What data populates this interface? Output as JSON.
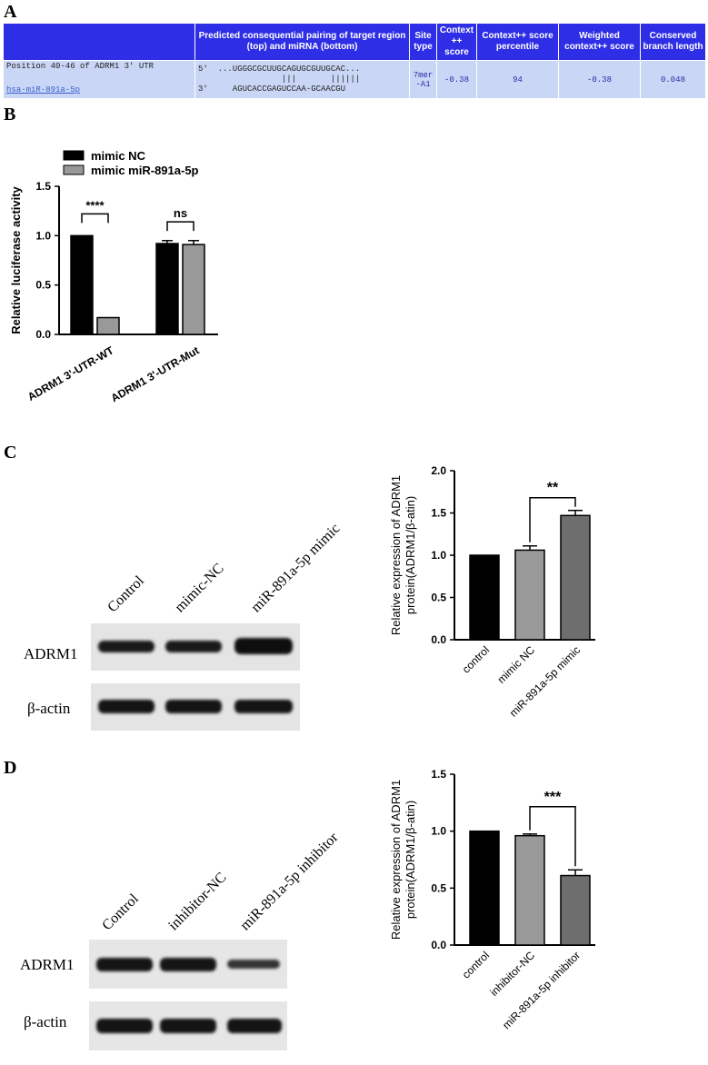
{
  "panels": {
    "a": "A",
    "b": "B",
    "c": "C",
    "d": "D"
  },
  "table": {
    "headers": [
      "",
      "Predicted consequential pairing of target region (top) and miRNA (bottom)",
      "Site type",
      "Context ++ score",
      "Context++ score percentile",
      "Weighted context++ score",
      "Conserved branch length"
    ],
    "row": {
      "position": "Position 40-46 of ADRM1 3' UTR",
      "mirna": "hsa-miR-891a-5p",
      "pair_top": "5'  ...UGGGCGCUUGCAGUGCGUUGCAC...",
      "pair_mid": "                 |||       ||||||",
      "pair_bottom": "3'     AGUCACCGAGUCCAA-GCAACGU",
      "site_type": "7mer -A1",
      "context_score": "-0.38",
      "percentile": "94",
      "weighted": "-0.38",
      "branch_length": "0.048"
    }
  },
  "blot_c": {
    "lanes": [
      "Control",
      "mimic-NC",
      "miR-891a-5p mimic"
    ],
    "rows": [
      "ADRM1",
      "β-actin"
    ]
  },
  "blot_d": {
    "lanes": [
      "Control",
      "inhibitor-NC",
      "miR-891a-5p inhibitor"
    ],
    "rows": [
      "ADRM1",
      "β-actin"
    ]
  },
  "chart_data": [
    {
      "type": "bar",
      "panel": "B",
      "ylabel": "Relative luciferase activity",
      "categories": [
        "ADRM1 3'-UTR-WT",
        "ADRM1 3'-UTR-Mut"
      ],
      "series": [
        {
          "name": "mimic NC",
          "values": [
            1.0,
            0.92
          ],
          "errors": [
            0.0,
            0.03
          ],
          "color": "#000000"
        },
        {
          "name": "mimic miR-891a-5p",
          "values": [
            0.17,
            0.91
          ],
          "errors": [
            0.0,
            0.04
          ],
          "color": "#999999"
        }
      ],
      "ylim": [
        0,
        1.5
      ],
      "yticks": [
        "0.0",
        "0.5",
        "1.0",
        "1.5"
      ],
      "significance": [
        "****",
        "ns"
      ],
      "legend": "top-left"
    },
    {
      "type": "bar",
      "panel": "C",
      "ylabel": "Relative expression of ADRM1 protein(ADRM1/β-atin)",
      "categories": [
        "control",
        "mimic NC",
        "miR-891a-5p mimic"
      ],
      "values": [
        1.0,
        1.06,
        1.47
      ],
      "errors": [
        0.0,
        0.05,
        0.06
      ],
      "colors": [
        "#000000",
        "#9a9a9a",
        "#6e6e6e"
      ],
      "ylim": [
        0,
        2.0
      ],
      "yticks": [
        "0.0",
        "0.5",
        "1.0",
        "1.5",
        "2.0"
      ],
      "significance": "**"
    },
    {
      "type": "bar",
      "panel": "D",
      "ylabel": "Relative expression of ADRM1 protein(ADRM1/β-atin)",
      "categories": [
        "control",
        "inhibitor-NC",
        "miR-891a-5p inhibitor"
      ],
      "values": [
        1.0,
        0.96,
        0.61
      ],
      "errors": [
        0.0,
        0.015,
        0.05
      ],
      "colors": [
        "#000000",
        "#9a9a9a",
        "#6e6e6e"
      ],
      "ylim": [
        0,
        1.5
      ],
      "yticks": [
        "0.0",
        "0.5",
        "1.0",
        "1.5"
      ],
      "significance": "***"
    }
  ]
}
